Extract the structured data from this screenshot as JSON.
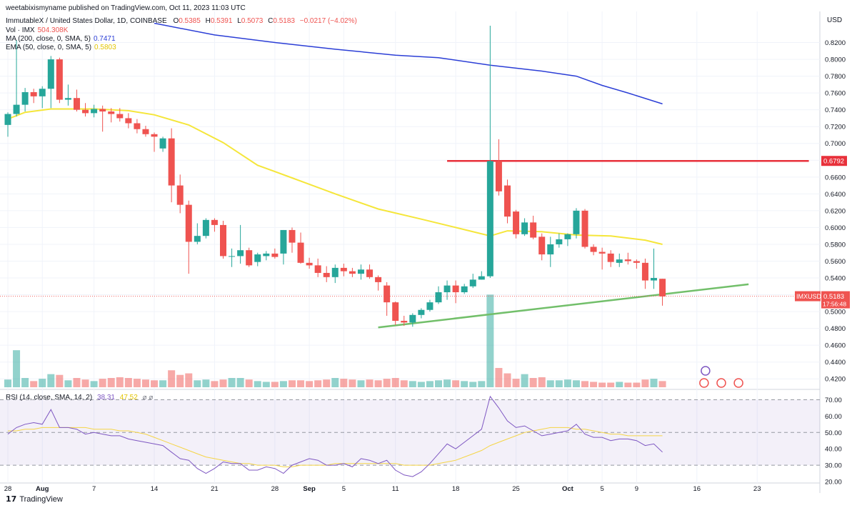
{
  "header": {
    "text": "weetabixismyname published on TradingView.com, Oct 11, 2023 11:03 UTC"
  },
  "legend": {
    "title": "ImmutableX / United States Dollar, 1D, COINBASE",
    "ohlc": [
      {
        "k": "O",
        "v": "0.5385"
      },
      {
        "k": "H",
        "v": "0.5391"
      },
      {
        "k": "L",
        "v": "0.5073"
      },
      {
        "k": "C",
        "v": "0.5183"
      }
    ],
    "change": "−0.0217 (−4.02%)",
    "vol_label": "Vol · IMX",
    "vol_value": "504.308K",
    "ma_label": "MA (200, close, 0, SMA, 5)",
    "ma_value": "0.7471",
    "ema_label": "EMA (50, close, 0, SMA, 5)",
    "ema_value": "0.5803",
    "rsi_label": "RSI (14, close, SMA, 14, 2)",
    "rsi_value": "38.31",
    "rsi_ma_value": "47.52",
    "rsi_extra": "⌀ ⌀"
  },
  "footer": {
    "brand": "TradingView"
  },
  "colors": {
    "up": "#26a69a",
    "down": "#ef5350",
    "ma200": "#2b3ed6",
    "ema50": "#f5e63a",
    "support": "#72bf6a",
    "resistance": "#e8313b",
    "rsi": "#7e57c2",
    "rsi_ma": "#f5d547"
  },
  "chart_data": {
    "type": "candlestick",
    "symbol": "IMXUSD",
    "currency": "USD",
    "price_axis": {
      "min": 0.41,
      "max": 0.84,
      "ticks": [
        "0.4200",
        "0.4400",
        "0.4600",
        "0.4800",
        "0.5000",
        "0.5200",
        "0.5400",
        "0.5600",
        "0.5800",
        "0.6000",
        "0.6200",
        "0.6400",
        "0.6600",
        "0.6800",
        "0.7000",
        "0.7200",
        "0.7400",
        "0.7600",
        "0.7800",
        "0.8000",
        "0.8200"
      ]
    },
    "x_axis": {
      "labels": [
        {
          "t": "28",
          "i": 0
        },
        {
          "t": "Aug",
          "i": 4
        },
        {
          "t": "7",
          "i": 10
        },
        {
          "t": "14",
          "i": 17
        },
        {
          "t": "21",
          "i": 24
        },
        {
          "t": "28",
          "i": 31
        },
        {
          "t": "Sep",
          "i": 35
        },
        {
          "t": "5",
          "i": 39
        },
        {
          "t": "11",
          "i": 45
        },
        {
          "t": "18",
          "i": 52
        },
        {
          "t": "25",
          "i": 59
        },
        {
          "t": "Oct",
          "i": 65
        },
        {
          "t": "5",
          "i": 69
        },
        {
          "t": "9",
          "i": 73
        },
        {
          "t": "16",
          "i": 80
        },
        {
          "t": "23",
          "i": 87
        }
      ]
    },
    "candles": [
      {
        "o": 0.722,
        "h": 0.737,
        "l": 0.708,
        "c": 0.735,
        "v": 10
      },
      {
        "o": 0.735,
        "h": 0.823,
        "l": 0.732,
        "c": 0.746,
        "v": 48
      },
      {
        "o": 0.746,
        "h": 0.766,
        "l": 0.738,
        "c": 0.761,
        "v": 12
      },
      {
        "o": 0.761,
        "h": 0.765,
        "l": 0.748,
        "c": 0.756,
        "v": 8
      },
      {
        "o": 0.756,
        "h": 0.768,
        "l": 0.742,
        "c": 0.765,
        "v": 11
      },
      {
        "o": 0.765,
        "h": 0.804,
        "l": 0.742,
        "c": 0.8,
        "v": 17
      },
      {
        "o": 0.8,
        "h": 0.802,
        "l": 0.748,
        "c": 0.752,
        "v": 16
      },
      {
        "o": 0.752,
        "h": 0.77,
        "l": 0.745,
        "c": 0.754,
        "v": 9
      },
      {
        "o": 0.754,
        "h": 0.764,
        "l": 0.738,
        "c": 0.74,
        "v": 12
      },
      {
        "o": 0.74,
        "h": 0.748,
        "l": 0.732,
        "c": 0.736,
        "v": 10
      },
      {
        "o": 0.736,
        "h": 0.746,
        "l": 0.731,
        "c": 0.741,
        "v": 8
      },
      {
        "o": 0.741,
        "h": 0.745,
        "l": 0.714,
        "c": 0.738,
        "v": 11
      },
      {
        "o": 0.738,
        "h": 0.742,
        "l": 0.725,
        "c": 0.735,
        "v": 12
      },
      {
        "o": 0.735,
        "h": 0.742,
        "l": 0.726,
        "c": 0.73,
        "v": 13
      },
      {
        "o": 0.73,
        "h": 0.736,
        "l": 0.718,
        "c": 0.724,
        "v": 12
      },
      {
        "o": 0.724,
        "h": 0.729,
        "l": 0.712,
        "c": 0.717,
        "v": 11
      },
      {
        "o": 0.717,
        "h": 0.721,
        "l": 0.708,
        "c": 0.711,
        "v": 10
      },
      {
        "o": 0.711,
        "h": 0.713,
        "l": 0.69,
        "c": 0.708,
        "v": 9
      },
      {
        "o": 0.694,
        "h": 0.708,
        "l": 0.69,
        "c": 0.706,
        "v": 9
      },
      {
        "o": 0.706,
        "h": 0.718,
        "l": 0.63,
        "c": 0.65,
        "v": 22
      },
      {
        "o": 0.65,
        "h": 0.663,
        "l": 0.617,
        "c": 0.627,
        "v": 16
      },
      {
        "o": 0.627,
        "h": 0.632,
        "l": 0.545,
        "c": 0.583,
        "v": 18
      },
      {
        "o": 0.583,
        "h": 0.605,
        "l": 0.58,
        "c": 0.59,
        "v": 9
      },
      {
        "o": 0.59,
        "h": 0.611,
        "l": 0.587,
        "c": 0.609,
        "v": 10
      },
      {
        "o": 0.609,
        "h": 0.611,
        "l": 0.595,
        "c": 0.603,
        "v": 8
      },
      {
        "o": 0.603,
        "h": 0.608,
        "l": 0.563,
        "c": 0.566,
        "v": 10
      },
      {
        "o": 0.566,
        "h": 0.575,
        "l": 0.553,
        "c": 0.566,
        "v": 12
      },
      {
        "o": 0.566,
        "h": 0.603,
        "l": 0.557,
        "c": 0.573,
        "v": 12
      },
      {
        "o": 0.573,
        "h": 0.576,
        "l": 0.553,
        "c": 0.555,
        "v": 10
      },
      {
        "o": 0.559,
        "h": 0.57,
        "l": 0.554,
        "c": 0.568,
        "v": 8
      },
      {
        "o": 0.566,
        "h": 0.572,
        "l": 0.561,
        "c": 0.569,
        "v": 7
      },
      {
        "o": 0.569,
        "h": 0.575,
        "l": 0.563,
        "c": 0.565,
        "v": 7
      },
      {
        "o": 0.569,
        "h": 0.597,
        "l": 0.556,
        "c": 0.597,
        "v": 8
      },
      {
        "o": 0.597,
        "h": 0.6,
        "l": 0.57,
        "c": 0.582,
        "v": 9
      },
      {
        "o": 0.582,
        "h": 0.594,
        "l": 0.557,
        "c": 0.558,
        "v": 9
      },
      {
        "o": 0.558,
        "h": 0.564,
        "l": 0.551,
        "c": 0.555,
        "v": 8
      },
      {
        "o": 0.555,
        "h": 0.563,
        "l": 0.541,
        "c": 0.546,
        "v": 9
      },
      {
        "o": 0.546,
        "h": 0.554,
        "l": 0.535,
        "c": 0.541,
        "v": 10
      },
      {
        "o": 0.541,
        "h": 0.556,
        "l": 0.534,
        "c": 0.552,
        "v": 12
      },
      {
        "o": 0.552,
        "h": 0.557,
        "l": 0.542,
        "c": 0.548,
        "v": 11
      },
      {
        "o": 0.548,
        "h": 0.552,
        "l": 0.541,
        "c": 0.545,
        "v": 10
      },
      {
        "o": 0.545,
        "h": 0.556,
        "l": 0.538,
        "c": 0.55,
        "v": 9
      },
      {
        "o": 0.55,
        "h": 0.556,
        "l": 0.539,
        "c": 0.541,
        "v": 10
      },
      {
        "o": 0.541,
        "h": 0.543,
        "l": 0.525,
        "c": 0.535,
        "v": 9
      },
      {
        "o": 0.531,
        "h": 0.535,
        "l": 0.495,
        "c": 0.511,
        "v": 11
      },
      {
        "o": 0.511,
        "h": 0.512,
        "l": 0.484,
        "c": 0.489,
        "v": 12
      },
      {
        "o": 0.489,
        "h": 0.495,
        "l": 0.483,
        "c": 0.487,
        "v": 9
      },
      {
        "o": 0.487,
        "h": 0.498,
        "l": 0.482,
        "c": 0.496,
        "v": 8
      },
      {
        "o": 0.496,
        "h": 0.504,
        "l": 0.492,
        "c": 0.502,
        "v": 7
      },
      {
        "o": 0.502,
        "h": 0.514,
        "l": 0.5,
        "c": 0.511,
        "v": 8
      },
      {
        "o": 0.511,
        "h": 0.53,
        "l": 0.509,
        "c": 0.523,
        "v": 9
      },
      {
        "o": 0.523,
        "h": 0.537,
        "l": 0.514,
        "c": 0.531,
        "v": 10
      },
      {
        "o": 0.531,
        "h": 0.537,
        "l": 0.51,
        "c": 0.523,
        "v": 9
      },
      {
        "o": 0.523,
        "h": 0.533,
        "l": 0.521,
        "c": 0.53,
        "v": 8
      },
      {
        "o": 0.53,
        "h": 0.545,
        "l": 0.528,
        "c": 0.538,
        "v": 7
      },
      {
        "o": 0.538,
        "h": 0.548,
        "l": 0.538,
        "c": 0.542,
        "v": 8
      },
      {
        "o": 0.542,
        "h": 0.84,
        "l": 0.54,
        "c": 0.679,
        "v": 120
      },
      {
        "o": 0.679,
        "h": 0.705,
        "l": 0.638,
        "c": 0.643,
        "v": 25
      },
      {
        "o": 0.65,
        "h": 0.657,
        "l": 0.605,
        "c": 0.613,
        "v": 18
      },
      {
        "o": 0.619,
        "h": 0.621,
        "l": 0.587,
        "c": 0.592,
        "v": 11
      },
      {
        "o": 0.592,
        "h": 0.611,
        "l": 0.59,
        "c": 0.606,
        "v": 17
      },
      {
        "o": 0.606,
        "h": 0.614,
        "l": 0.586,
        "c": 0.588,
        "v": 12
      },
      {
        "o": 0.589,
        "h": 0.593,
        "l": 0.561,
        "c": 0.568,
        "v": 13
      },
      {
        "o": 0.568,
        "h": 0.589,
        "l": 0.553,
        "c": 0.58,
        "v": 9
      },
      {
        "o": 0.58,
        "h": 0.593,
        "l": 0.576,
        "c": 0.586,
        "v": 9
      },
      {
        "o": 0.586,
        "h": 0.593,
        "l": 0.578,
        "c": 0.592,
        "v": 10
      },
      {
        "o": 0.592,
        "h": 0.623,
        "l": 0.587,
        "c": 0.62,
        "v": 9
      },
      {
        "o": 0.62,
        "h": 0.622,
        "l": 0.575,
        "c": 0.577,
        "v": 8
      },
      {
        "o": 0.577,
        "h": 0.58,
        "l": 0.567,
        "c": 0.571,
        "v": 7
      },
      {
        "o": 0.571,
        "h": 0.576,
        "l": 0.55,
        "c": 0.569,
        "v": 6
      },
      {
        "o": 0.569,
        "h": 0.573,
        "l": 0.553,
        "c": 0.559,
        "v": 6
      },
      {
        "o": 0.558,
        "h": 0.569,
        "l": 0.553,
        "c": 0.562,
        "v": 7
      },
      {
        "o": 0.562,
        "h": 0.57,
        "l": 0.556,
        "c": 0.56,
        "v": 6
      },
      {
        "o": 0.56,
        "h": 0.562,
        "l": 0.551,
        "c": 0.558,
        "v": 6
      },
      {
        "o": 0.558,
        "h": 0.563,
        "l": 0.527,
        "c": 0.537,
        "v": 10
      },
      {
        "o": 0.537,
        "h": 0.575,
        "l": 0.527,
        "c": 0.54,
        "v": 11
      },
      {
        "o": 0.539,
        "h": 0.539,
        "l": 0.507,
        "c": 0.518,
        "v": 8
      }
    ],
    "ma200": [
      [
        17,
        0.843
      ],
      [
        24,
        0.829
      ],
      [
        31,
        0.82
      ],
      [
        38,
        0.812
      ],
      [
        45,
        0.805
      ],
      [
        50,
        0.802
      ],
      [
        56,
        0.793
      ],
      [
        62,
        0.786
      ],
      [
        66,
        0.78
      ],
      [
        69,
        0.769
      ],
      [
        72,
        0.76
      ],
      [
        76,
        0.747
      ]
    ],
    "ema50": [
      [
        0,
        0.729
      ],
      [
        2,
        0.737
      ],
      [
        5,
        0.741
      ],
      [
        10,
        0.741
      ],
      [
        14,
        0.739
      ],
      [
        17,
        0.734
      ],
      [
        21,
        0.722
      ],
      [
        25,
        0.701
      ],
      [
        29,
        0.674
      ],
      [
        33,
        0.659
      ],
      [
        38,
        0.64
      ],
      [
        43,
        0.622
      ],
      [
        48,
        0.61
      ],
      [
        52,
        0.6
      ],
      [
        56,
        0.59
      ],
      [
        58,
        0.596
      ],
      [
        62,
        0.595
      ],
      [
        66,
        0.591
      ],
      [
        70,
        0.59
      ],
      [
        74,
        0.585
      ],
      [
        76,
        0.58
      ]
    ],
    "support_line": {
      "i0": 43,
      "p0": 0.4812,
      "i1": 86,
      "p1": 0.5325
    },
    "resistance_line": {
      "i0": 51,
      "i1": 93,
      "p": 0.6792,
      "label": "0.6792"
    },
    "current_price": {
      "p": 0.5183,
      "label": "IMXUSD",
      "value": "0.5183",
      "countdown": "17:56:48"
    },
    "rsi": {
      "min": 20,
      "max": 75,
      "upper": 70,
      "mid": 50,
      "lower": 30,
      "ticks": [
        "70.00",
        "60.00",
        "50.00",
        "40.00",
        "30.00",
        "20.00"
      ],
      "values": [
        49,
        53,
        55,
        56,
        55,
        64,
        53,
        53,
        52,
        49,
        50,
        49,
        48,
        48,
        46,
        45,
        44,
        43,
        42,
        38,
        34,
        33,
        28,
        25,
        28,
        32,
        31,
        31,
        27,
        27,
        29,
        28,
        25,
        30,
        32,
        34,
        33,
        30,
        30,
        31,
        29,
        34,
        33,
        31,
        33,
        27,
        24,
        23,
        26,
        31,
        37,
        43,
        40,
        44,
        48,
        52,
        72,
        65,
        57,
        53,
        54,
        51,
        48,
        49,
        50,
        51,
        55,
        49,
        47,
        47,
        45,
        46,
        46,
        45,
        42,
        43,
        38
      ],
      "ma_values": [
        51,
        51,
        52,
        52,
        53,
        53,
        53,
        53,
        53,
        53,
        52,
        52,
        52,
        51,
        51,
        50,
        49,
        47,
        45,
        43,
        41,
        39,
        37,
        35,
        34,
        33,
        32,
        31,
        31,
        30,
        30,
        30,
        29,
        29,
        30,
        30,
        30,
        30,
        31,
        31,
        31,
        31,
        31,
        31,
        31,
        31,
        30,
        30,
        30,
        30,
        31,
        32,
        33,
        35,
        37,
        39,
        42,
        44,
        46,
        48,
        50,
        51,
        52,
        53,
        53,
        53,
        52,
        52,
        51,
        50,
        49,
        49,
        48,
        48,
        48,
        48,
        48
      ]
    }
  }
}
